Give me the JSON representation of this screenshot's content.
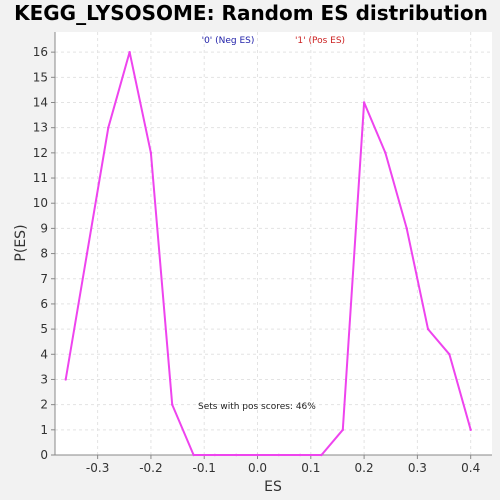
{
  "chart_data": {
    "type": "line",
    "title": "KEGG_LYSOSOME: Random ES distribution",
    "xlabel": "ES",
    "ylabel": "P(ES)",
    "xlim": [
      -0.38,
      0.44
    ],
    "ylim": [
      0,
      16.8
    ],
    "x_ticks": [
      -0.3,
      -0.2,
      -0.1,
      0.0,
      0.1,
      0.2,
      0.3,
      0.4
    ],
    "x_tick_labels": [
      "-0.3",
      "-0.2",
      "-0.1",
      "0.0",
      "0.1",
      "0.2",
      "0.3",
      "0.4"
    ],
    "y_ticks": [
      0,
      1,
      2,
      3,
      4,
      5,
      6,
      7,
      8,
      9,
      10,
      11,
      12,
      13,
      14,
      15,
      16
    ],
    "grid": true,
    "legend": {
      "placement": "top-center",
      "entries": [
        {
          "label": "'0' (Neg ES)",
          "color": "#2222aa"
        },
        {
          "label": "'1' (Pos ES)",
          "color": "#cc2222"
        }
      ]
    },
    "annotation": "Sets with pos scores: 46%",
    "series": [
      {
        "color": "#ee44ee",
        "x": [
          -0.36,
          -0.32,
          -0.28,
          -0.24,
          -0.2,
          -0.16,
          -0.12,
          -0.08,
          -0.04,
          0.0,
          0.04,
          0.08,
          0.12,
          0.16,
          0.2,
          0.24,
          0.28,
          0.32,
          0.36,
          0.4
        ],
        "y": [
          3,
          8,
          13,
          16,
          12,
          2,
          0,
          0,
          0,
          0,
          0,
          0,
          0,
          1,
          14,
          12,
          9,
          5,
          4,
          1
        ]
      }
    ]
  }
}
